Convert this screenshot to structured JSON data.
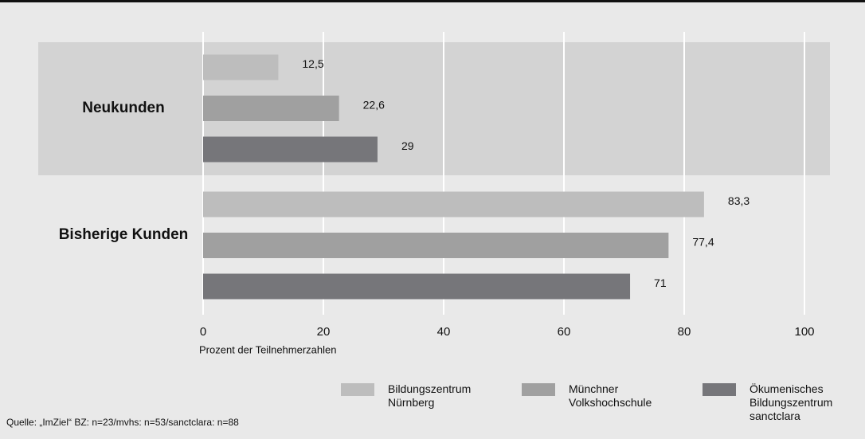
{
  "chart_data": {
    "type": "bar",
    "orientation": "horizontal",
    "categories": [
      "Neukunden",
      "Bisherige Kunden"
    ],
    "series": [
      {
        "name": "Bildungszentrum Nürnberg",
        "color": "#bdbdbd",
        "values": [
          12.5,
          83.3
        ],
        "value_labels": [
          "12,5",
          "83,3"
        ]
      },
      {
        "name": "Münchner Volkshochschule",
        "color": "#a0a0a0",
        "values": [
          22.6,
          77.4
        ],
        "value_labels": [
          "22,6",
          "77,4"
        ]
      },
      {
        "name": "Ökumenisches Bildungszentrum sanctclara",
        "color": "#76767a",
        "values": [
          29,
          71
        ]
      }
    ],
    "xlim": [
      0,
      100
    ],
    "xticks": [
      0,
      20,
      40,
      60,
      80,
      100
    ],
    "xlabel": "Prozent der Teilnehmerzahlen",
    "grid": true,
    "legend": "bottom",
    "source": "Quelle: „ImZiel“   BZ: n=23/mvhs: n=53/sanctclara: n=88"
  }
}
